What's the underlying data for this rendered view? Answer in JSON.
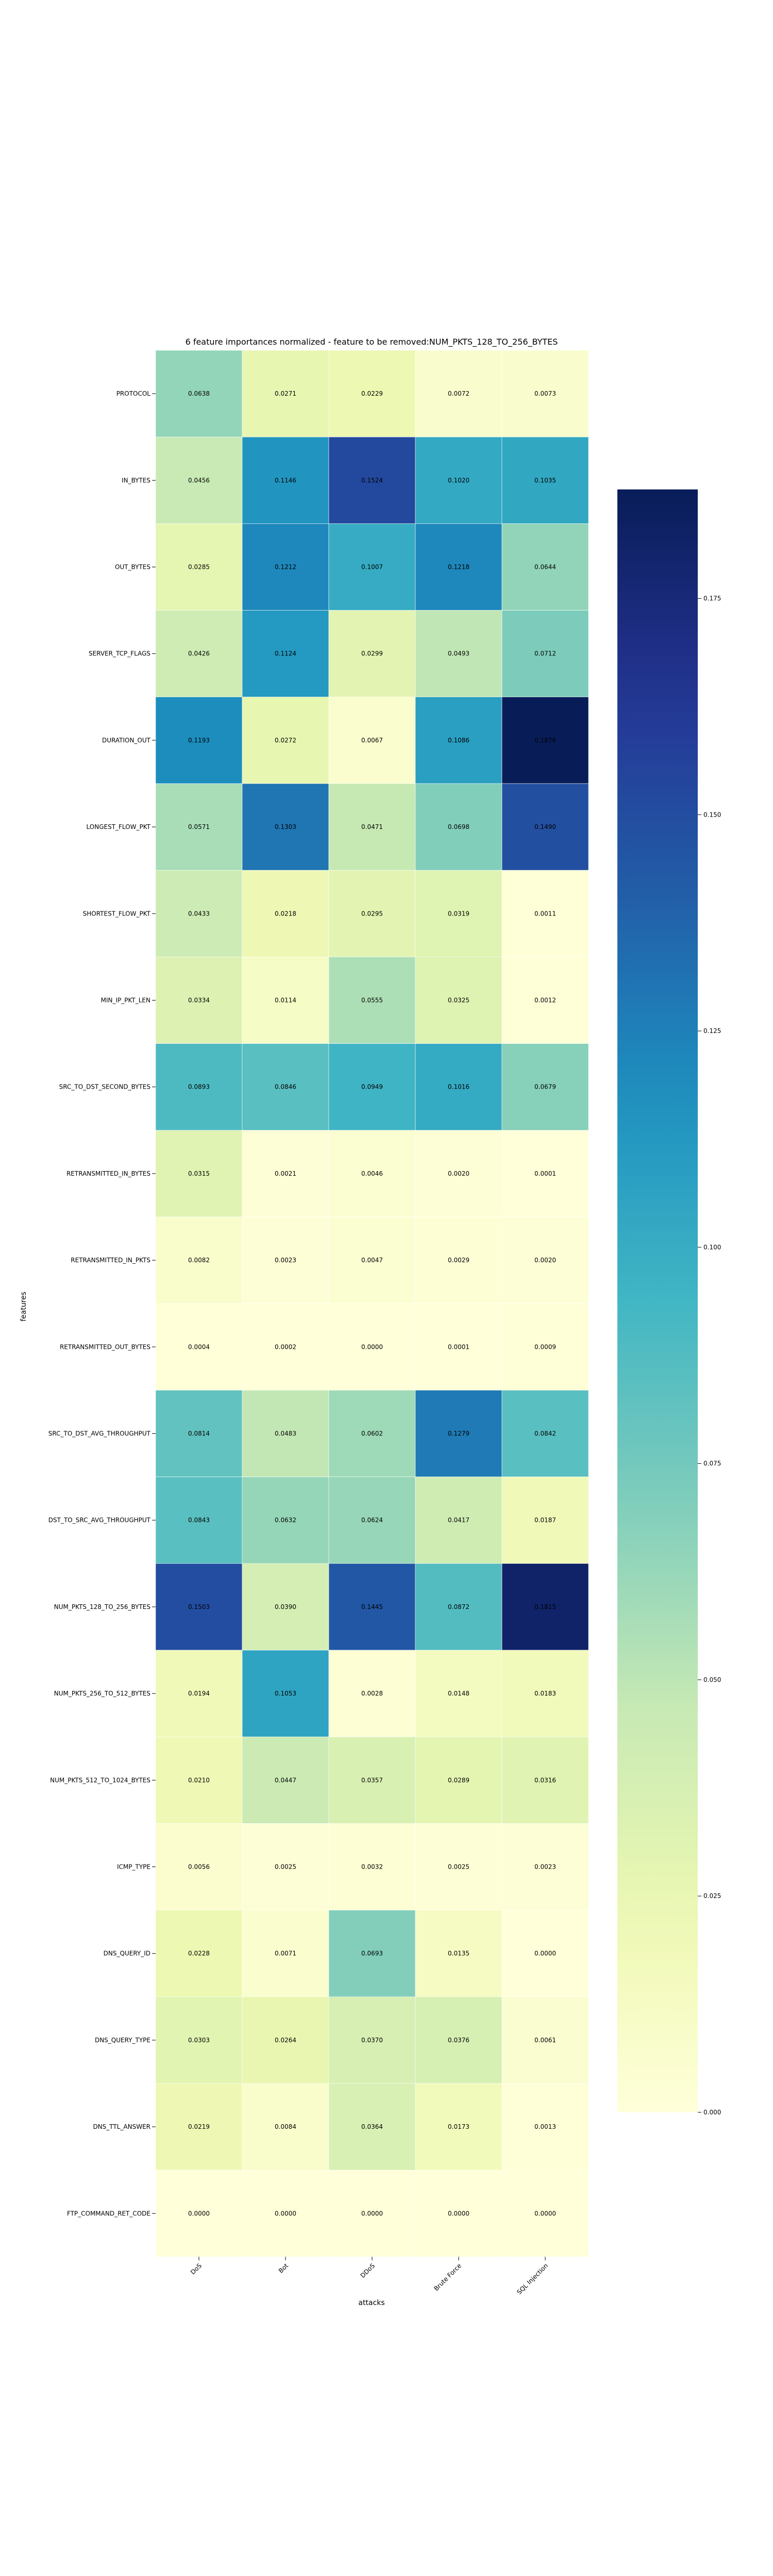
{
  "chart_data": {
    "type": "heatmap",
    "title": "6 feature importances normalized - feature to be removed:NUM_PKTS_128_TO_256_BYTES",
    "xlabel": "attacks",
    "ylabel": "features",
    "x_categories": [
      "DoS",
      "Bot",
      "DDoS",
      "Brute Force",
      "SQL Injection"
    ],
    "y_categories": [
      "PROTOCOL",
      "IN_BYTES",
      "OUT_BYTES",
      "SERVER_TCP_FLAGS",
      "DURATION_OUT",
      "LONGEST_FLOW_PKT",
      "SHORTEST_FLOW_PKT",
      "MIN_IP_PKT_LEN",
      "SRC_TO_DST_SECOND_BYTES",
      "RETRANSMITTED_IN_BYTES",
      "RETRANSMITTED_IN_PKTS",
      "RETRANSMITTED_OUT_BYTES",
      "SRC_TO_DST_AVG_THROUGHPUT",
      "DST_TO_SRC_AVG_THROUGHPUT",
      "NUM_PKTS_128_TO_256_BYTES",
      "NUM_PKTS_256_TO_512_BYTES",
      "NUM_PKTS_512_TO_1024_BYTES",
      "ICMP_TYPE",
      "DNS_QUERY_ID",
      "DNS_QUERY_TYPE",
      "DNS_TTL_ANSWER",
      "FTP_COMMAND_RET_CODE"
    ],
    "values": [
      [
        0.0638,
        0.0271,
        0.0229,
        0.0072,
        0.0073
      ],
      [
        0.0456,
        0.1146,
        0.1524,
        0.102,
        0.1035
      ],
      [
        0.0285,
        0.1212,
        0.1007,
        0.1218,
        0.0644
      ],
      [
        0.0426,
        0.1124,
        0.0299,
        0.0493,
        0.0712
      ],
      [
        0.1193,
        0.0272,
        0.0067,
        0.1086,
        0.1876
      ],
      [
        0.0571,
        0.1303,
        0.0471,
        0.0698,
        0.149
      ],
      [
        0.0433,
        0.0218,
        0.0295,
        0.0319,
        0.0011
      ],
      [
        0.0334,
        0.0114,
        0.0555,
        0.0325,
        0.0012
      ],
      [
        0.0893,
        0.0846,
        0.0949,
        0.1016,
        0.0679
      ],
      [
        0.0315,
        0.0021,
        0.0046,
        0.002,
        0.0001
      ],
      [
        0.0082,
        0.0023,
        0.0047,
        0.0029,
        0.002
      ],
      [
        0.0004,
        0.0002,
        0.0,
        0.0001,
        0.0009
      ],
      [
        0.0814,
        0.0483,
        0.0602,
        0.1279,
        0.0842
      ],
      [
        0.0843,
        0.0632,
        0.0624,
        0.0417,
        0.0187
      ],
      [
        0.1503,
        0.039,
        0.1445,
        0.0872,
        0.1815
      ],
      [
        0.0194,
        0.1053,
        0.0028,
        0.0148,
        0.0183
      ],
      [
        0.021,
        0.0447,
        0.0357,
        0.0289,
        0.0316
      ],
      [
        0.0056,
        0.0025,
        0.0032,
        0.0025,
        0.0023
      ],
      [
        0.0228,
        0.0071,
        0.0693,
        0.0135,
        0.0
      ],
      [
        0.0303,
        0.0264,
        0.037,
        0.0376,
        0.0061
      ],
      [
        0.0219,
        0.0084,
        0.0364,
        0.0173,
        0.0013
      ],
      [
        0.0,
        0.0,
        0.0,
        0.0,
        0.0
      ]
    ],
    "value_format": "0.0000",
    "colormap": "YlGnBu",
    "vmin": 0.0,
    "vmax": 0.1876,
    "colorbar_ticks": [
      "0.000",
      "0.025",
      "0.050",
      "0.075",
      "0.100",
      "0.125",
      "0.150",
      "0.175"
    ],
    "colorbar_placement": "right",
    "grid": false
  }
}
